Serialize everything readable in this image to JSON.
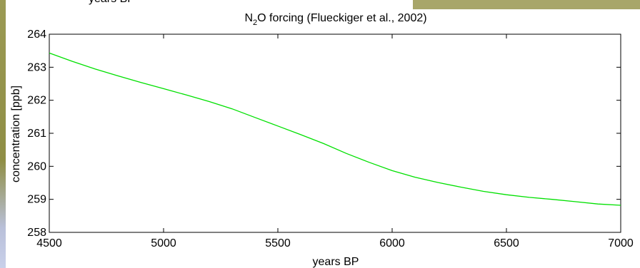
{
  "previous_panel": {
    "xlabel": "years BP"
  },
  "chart_data": {
    "type": "line",
    "title": {
      "main": "N",
      "subscript": "2",
      "rest": "O forcing (Flueckiger et al., 2002)"
    },
    "xlabel": "years BP",
    "ylabel": "concentration [ppb]",
    "xlim": [
      4500,
      7000
    ],
    "ylim": [
      258,
      264
    ],
    "xticks": [
      4500,
      5000,
      5500,
      6000,
      6500,
      7000
    ],
    "yticks": [
      258,
      259,
      260,
      261,
      262,
      263,
      264
    ],
    "grid": false,
    "series": [
      {
        "color": "#00e000",
        "x": [
          4500,
          4600,
          4700,
          4800,
          4900,
          5000,
          5100,
          5200,
          5300,
          5400,
          5500,
          5600,
          5700,
          5800,
          5900,
          6000,
          6100,
          6200,
          6300,
          6400,
          6500,
          6600,
          6700,
          6800,
          6900,
          7000
        ],
        "y": [
          263.43,
          263.18,
          262.95,
          262.74,
          262.54,
          262.35,
          262.16,
          261.96,
          261.74,
          261.48,
          261.22,
          260.96,
          260.69,
          260.39,
          260.12,
          259.87,
          259.67,
          259.51,
          259.37,
          259.24,
          259.14,
          259.06,
          259.0,
          258.93,
          258.86,
          258.82
        ]
      }
    ]
  }
}
